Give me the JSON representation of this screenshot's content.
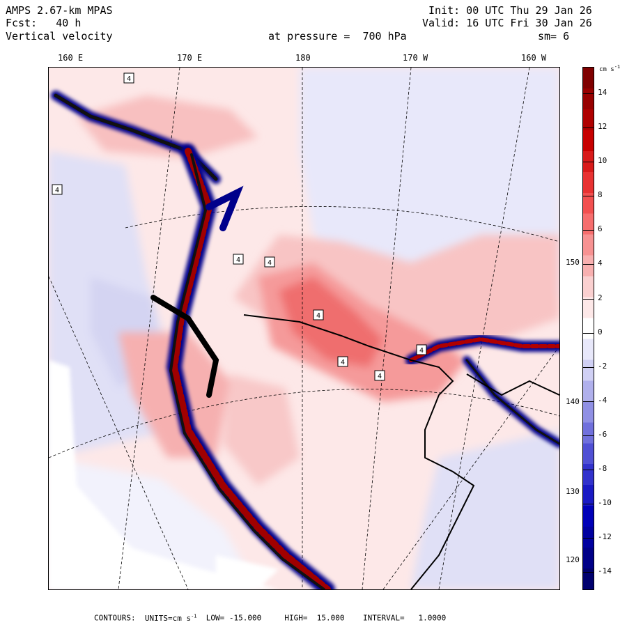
{
  "header": {
    "model": "AMPS 2.67-km MPAS",
    "forecast_label": "Fcst:",
    "forecast_value": "40 h",
    "field": "Vertical velocity",
    "pressure_text": "at pressure =  700 hPa",
    "init": "Init: 00 UTC Thu 29 Jan 26",
    "valid": "Valid: 16 UTC Fri 30 Jan 26",
    "smoothing": "sm= 6"
  },
  "map": {
    "longitude_labels": [
      "160 E",
      "170 E",
      "180",
      "170 W",
      "160 W"
    ],
    "latitude_labels": [
      "150 W",
      "140 W",
      "130 W",
      "120 W"
    ],
    "contour_label_value": "4"
  },
  "colorbar": {
    "units": "cm s",
    "units_exp": "-1",
    "tick_labels": [
      "14",
      "12",
      "10",
      "8",
      "6",
      "4",
      "2",
      "0",
      "-2",
      "-4",
      "-6",
      "-8",
      "-10",
      "-12",
      "-14"
    ],
    "colors": [
      "#7f0000",
      "#970000",
      "#af0000",
      "#c70000",
      "#d81a1a",
      "#e83232",
      "#f25050",
      "#f66e6e",
      "#f79292",
      "#f8b0b0",
      "#fad0d0",
      "#fde8e8",
      "#ffffff",
      "#e8e8fa",
      "#d0d0f4",
      "#b0b0ec",
      "#9090e4",
      "#7070dc",
      "#5050d4",
      "#3232cc",
      "#1a1ac4",
      "#0000b8",
      "#0000a0",
      "#000088",
      "#00006e"
    ]
  },
  "footer": {
    "contours": "CONTOURS:",
    "units_label": "UNITS=cm s",
    "units_exp": "-1",
    "low": "LOW= -15.000",
    "high": "HIGH=  15.000",
    "interval": "INTERVAL=   1.0000"
  }
}
